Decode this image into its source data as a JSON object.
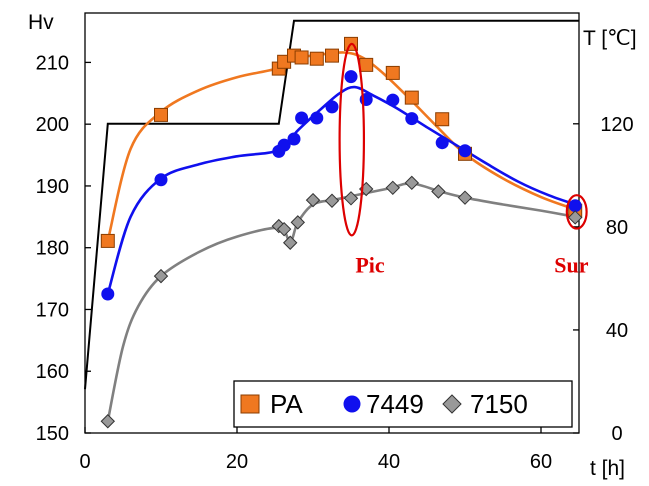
{
  "chart_data": {
    "type": "line",
    "left_axis_title": "Hv",
    "right_axis_title": "T [℃]",
    "x_axis_title": "t [h]",
    "xlim": [
      0,
      65
    ],
    "ylim": [
      150,
      218
    ],
    "y2lim": [
      0,
      163
    ],
    "x_ticks": [
      0,
      20,
      40,
      60
    ],
    "y_ticks": [
      150,
      160,
      170,
      180,
      190,
      200,
      210
    ],
    "y2_ticks": [
      0,
      40,
      80,
      120
    ],
    "grid": false,
    "legend_position": "bottom-right",
    "series": [
      {
        "name": "PA",
        "color": "#f07820",
        "marker": "square",
        "points": [
          [
            3,
            181.1
          ],
          [
            10,
            201.5
          ],
          [
            25.5,
            209.0
          ],
          [
            26.2,
            210.1
          ],
          [
            27.5,
            211.1
          ],
          [
            28.5,
            210.8
          ],
          [
            30.5,
            210.6
          ],
          [
            32.5,
            211.1
          ],
          [
            35,
            213.0
          ],
          [
            37,
            209.6
          ],
          [
            40.5,
            208.3
          ],
          [
            43,
            204.3
          ],
          [
            47,
            200.8
          ],
          [
            50,
            195.2
          ],
          [
            64.5,
            186.0
          ]
        ],
        "curve": [
          [
            3,
            181.1
          ],
          [
            6,
            196.0
          ],
          [
            10,
            202.0
          ],
          [
            15,
            205.5
          ],
          [
            20,
            207.6
          ],
          [
            25.5,
            209.1
          ],
          [
            27.5,
            210.6
          ],
          [
            30,
            211.1
          ],
          [
            34,
            211.6
          ],
          [
            36.5,
            210.8
          ],
          [
            39,
            208.5
          ],
          [
            42,
            205.0
          ],
          [
            46,
            200.0
          ],
          [
            50,
            195.2
          ],
          [
            55,
            191.2
          ],
          [
            60,
            188.2
          ],
          [
            64.5,
            186.2
          ]
        ]
      },
      {
        "name": "7449",
        "color": "#1010ee",
        "marker": "circle",
        "points": [
          [
            3,
            172.5
          ],
          [
            10,
            191.0
          ],
          [
            25.5,
            195.6
          ],
          [
            26.2,
            196.6
          ],
          [
            27.5,
            197.6
          ],
          [
            28.5,
            201.0
          ],
          [
            30.5,
            201.0
          ],
          [
            32.5,
            202.8
          ],
          [
            35,
            207.7
          ],
          [
            37,
            204.0
          ],
          [
            40.5,
            203.9
          ],
          [
            43,
            200.9
          ],
          [
            47,
            197.0
          ],
          [
            50,
            195.7
          ],
          [
            64.5,
            186.8
          ]
        ],
        "curve": [
          [
            3,
            172.5
          ],
          [
            6,
            185.0
          ],
          [
            10,
            191.2
          ],
          [
            15,
            193.5
          ],
          [
            20,
            194.8
          ],
          [
            25.5,
            195.8
          ],
          [
            28,
            199.0
          ],
          [
            31,
            202.4
          ],
          [
            33.5,
            205.0
          ],
          [
            35.5,
            206.0
          ],
          [
            38,
            204.6
          ],
          [
            41,
            202.6
          ],
          [
            45,
            199.5
          ],
          [
            49,
            196.5
          ],
          [
            53,
            193.5
          ],
          [
            57,
            190.7
          ],
          [
            61,
            188.5
          ],
          [
            64.5,
            187.0
          ]
        ]
      },
      {
        "name": "7150",
        "color": "#808080",
        "marker": "diamond",
        "points": [
          [
            3,
            151.9
          ],
          [
            10,
            175.4
          ],
          [
            25.5,
            183.5
          ],
          [
            26.2,
            183.0
          ],
          [
            27,
            180.8
          ],
          [
            28,
            184.1
          ],
          [
            30,
            187.7
          ],
          [
            32.5,
            187.6
          ],
          [
            35,
            188.0
          ],
          [
            37,
            189.5
          ],
          [
            40.5,
            189.7
          ],
          [
            43,
            190.5
          ],
          [
            46.5,
            189.1
          ],
          [
            50,
            188.1
          ],
          [
            64.5,
            184.9
          ]
        ],
        "curve": [
          [
            3,
            151.9
          ],
          [
            5,
            164.0
          ],
          [
            7,
            170.5
          ],
          [
            10,
            175.4
          ],
          [
            15,
            179.3
          ],
          [
            20,
            181.8
          ],
          [
            25.5,
            183.2
          ],
          [
            27,
            181.0
          ],
          [
            28,
            184.1
          ],
          [
            30,
            187.0
          ],
          [
            33,
            187.8
          ],
          [
            36,
            188.6
          ],
          [
            40,
            189.6
          ],
          [
            43,
            190.4
          ],
          [
            47,
            189.0
          ],
          [
            50,
            188.1
          ],
          [
            55,
            187.0
          ],
          [
            60,
            186.0
          ],
          [
            64.5,
            185.0
          ]
        ]
      },
      {
        "name": "",
        "axis": "right",
        "color": "#000000",
        "marker": "none",
        "curve": [
          [
            0,
            17
          ],
          [
            3,
            120
          ],
          [
            25.5,
            120
          ],
          [
            27.5,
            160
          ],
          [
            70,
            160
          ]
        ]
      }
    ],
    "annotations": [
      {
        "text": "Pic",
        "color": "#dd0000",
        "x": 37.5,
        "y": 176.0
      },
      {
        "text": "Sur",
        "color": "#dd0000",
        "x": 64.0,
        "y": 176.0
      }
    ],
    "highlight_ellipses": [
      {
        "color": "#dd0000",
        "cx": 35.1,
        "cy": 197.5,
        "rx": 1.6,
        "ry": 15.5
      },
      {
        "color": "#dd0000",
        "cx": 64.7,
        "cy": 185.8,
        "rx": 1.3,
        "ry": 2.7
      }
    ]
  }
}
